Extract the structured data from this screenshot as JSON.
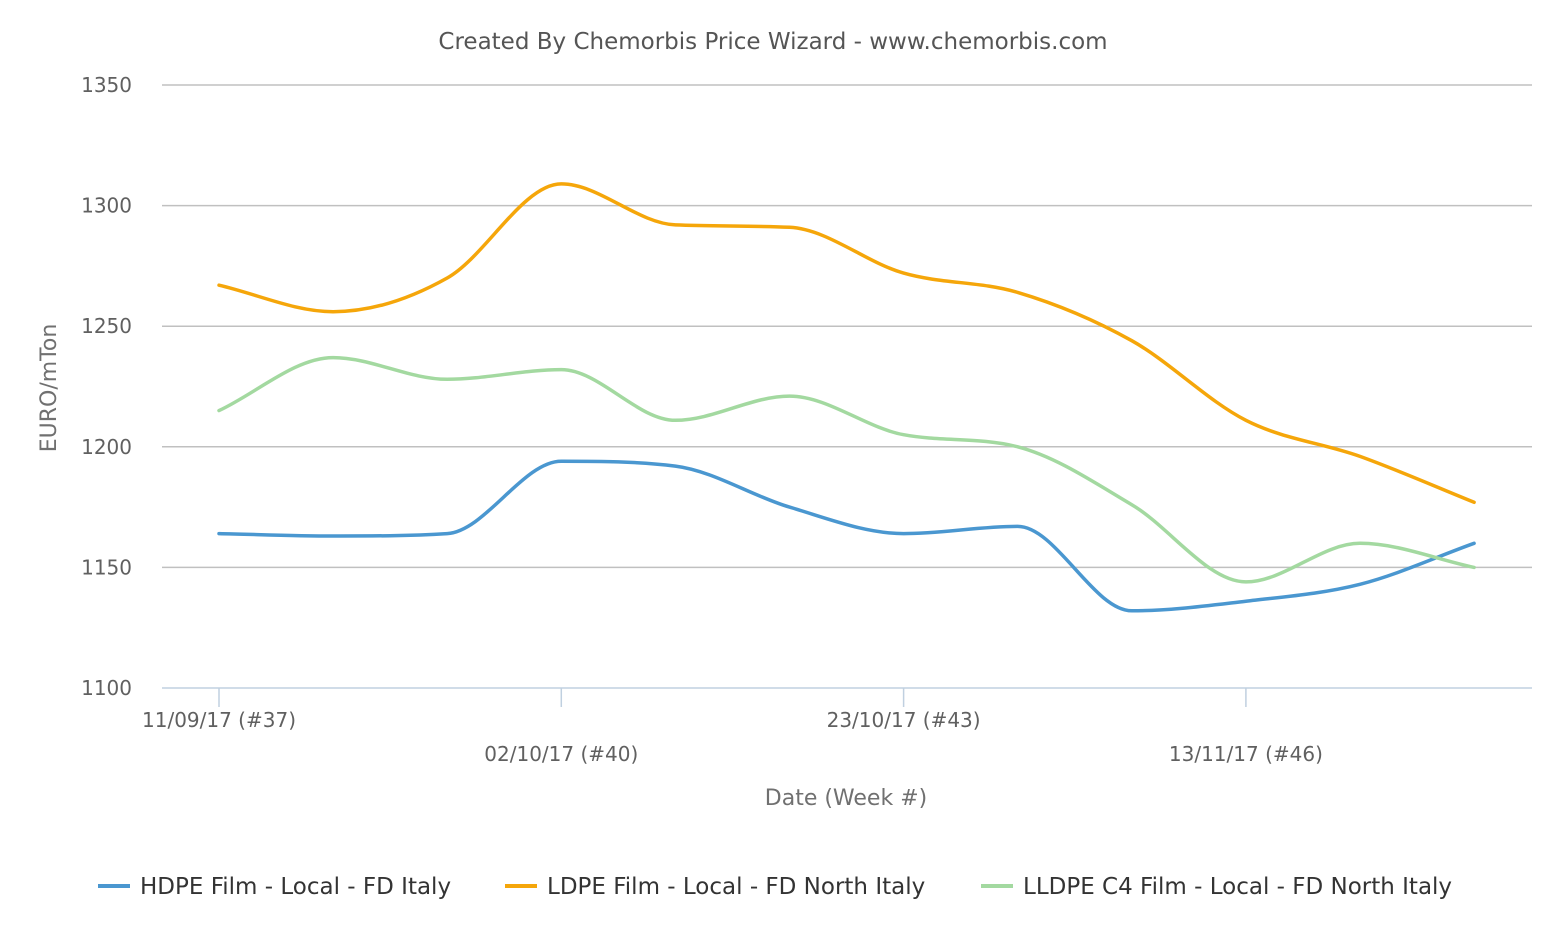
{
  "chart_data": {
    "type": "line",
    "title": "Created By Chemorbis Price Wizard - www.chemorbis.com",
    "xlabel": "Date (Week #)",
    "ylabel": "EURO/mTon",
    "ylim": [
      1100,
      1350
    ],
    "yticks": [
      "1100",
      "1150",
      "1200",
      "1250",
      "1300",
      "1350"
    ],
    "x": [
      "11/09/17 (#37)",
      "18/09/17 (#38)",
      "25/09/17 (#39)",
      "02/10/17 (#40)",
      "09/10/17 (#41)",
      "16/10/17 (#42)",
      "23/10/17 (#43)",
      "30/10/17 (#44)",
      "06/11/17 (#45)",
      "13/11/17 (#46)",
      "20/11/17 (#47)",
      "27/11/17 (#48)"
    ],
    "xtick_labels": [
      "11/09/17 (#37)",
      "02/10/17 (#40)",
      "23/10/17 (#43)",
      "13/11/17 (#46)"
    ],
    "grid": true,
    "legend_position": "bottom",
    "series": [
      {
        "name": "HDPE Film - Local - FD Italy",
        "color": "#4a97d0",
        "values": [
          1164,
          1163,
          1164,
          1194,
          1192,
          1175,
          1164,
          1167,
          1132,
          1136,
          1143,
          1160
        ]
      },
      {
        "name": "LDPE Film - Local - FD North Italy",
        "color": "#f5a60a",
        "values": [
          1267,
          1256,
          1270,
          1309,
          1292,
          1291,
          1272,
          1264,
          1244,
          1211,
          1196,
          1177
        ]
      },
      {
        "name": "LLDPE C4 Film - Local - FD North Italy",
        "color": "#a3d9a0",
        "values": [
          1215,
          1237,
          1228,
          1232,
          1211,
          1221,
          1205,
          1200,
          1176,
          1144,
          1160,
          1150
        ]
      }
    ]
  }
}
